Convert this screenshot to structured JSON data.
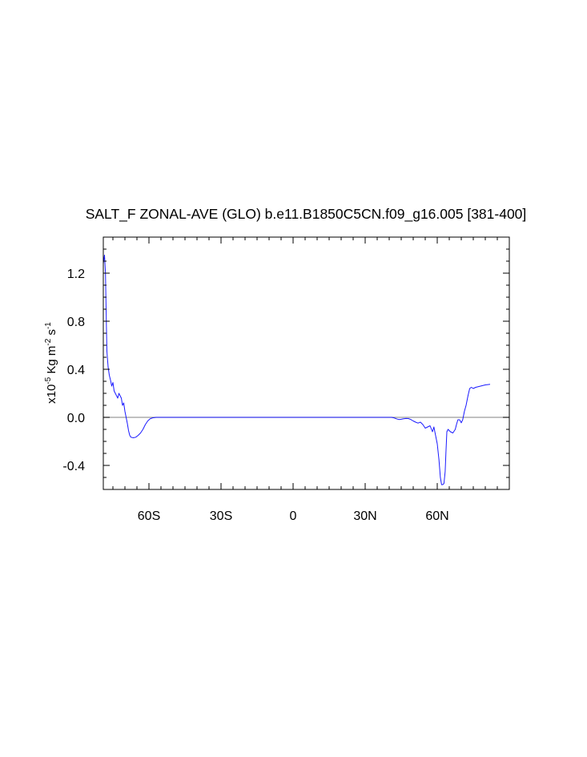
{
  "chart_data": {
    "type": "line",
    "title": "SALT_F ZONAL-AVE (GLO) b.e11.B1850C5CN.f09_g16.005 [381-400]",
    "ylabel": {
      "prefix": "x10",
      "exp1": "-5",
      "mid": " Kg m",
      "exp2": "-2",
      "mid2": " s",
      "exp3": "-1"
    },
    "xlim": [
      -79,
      90
    ],
    "ylim": [
      -0.6,
      1.5
    ],
    "xticks": [
      {
        "value": -60,
        "label": "60S"
      },
      {
        "value": -30,
        "label": "30S"
      },
      {
        "value": 0,
        "label": "0"
      },
      {
        "value": 30,
        "label": "30N"
      },
      {
        "value": 60,
        "label": "60N"
      }
    ],
    "yticks": [
      {
        "value": -0.4,
        "label": "-0.4"
      },
      {
        "value": 0.0,
        "label": "0.0"
      },
      {
        "value": 0.4,
        "label": "0.4"
      },
      {
        "value": 0.8,
        "label": "0.8"
      },
      {
        "value": 1.2,
        "label": "1.2"
      }
    ],
    "reference_line": {
      "y": 0.0,
      "color": "#9a9a9a"
    },
    "series": [
      {
        "color": "#1a1aff",
        "points": [
          [
            -79,
            1.28
          ],
          [
            -78.5,
            1.35
          ],
          [
            -78.1,
            1.2
          ],
          [
            -77.8,
            0.85
          ],
          [
            -77.5,
            0.55
          ],
          [
            -77,
            0.42
          ],
          [
            -76.5,
            0.35
          ],
          [
            -76,
            0.31
          ],
          [
            -75.5,
            0.26
          ],
          [
            -75,
            0.29
          ],
          [
            -74.5,
            0.22
          ],
          [
            -74,
            0.2
          ],
          [
            -73.5,
            0.18
          ],
          [
            -73,
            0.16
          ],
          [
            -72.5,
            0.2
          ],
          [
            -72,
            0.18
          ],
          [
            -71.5,
            0.16
          ],
          [
            -71,
            0.1
          ],
          [
            -70.5,
            0.12
          ],
          [
            -70,
            0.05
          ],
          [
            -69.5,
            0.0
          ],
          [
            -69,
            -0.05
          ],
          [
            -68.5,
            -0.11
          ],
          [
            -68,
            -0.15
          ],
          [
            -67.5,
            -0.165
          ],
          [
            -66.5,
            -0.17
          ],
          [
            -65.5,
            -0.165
          ],
          [
            -64.5,
            -0.15
          ],
          [
            -63.5,
            -0.13
          ],
          [
            -62.5,
            -0.1
          ],
          [
            -61.5,
            -0.06
          ],
          [
            -60.5,
            -0.03
          ],
          [
            -59.5,
            -0.012
          ],
          [
            -58.5,
            -0.004
          ],
          [
            -57,
            0.0
          ],
          [
            -50,
            0.0
          ],
          [
            -30,
            0.0
          ],
          [
            0,
            0.0
          ],
          [
            30,
            0.0
          ],
          [
            41,
            0.0
          ],
          [
            42,
            -0.004
          ],
          [
            43,
            -0.012
          ],
          [
            44,
            -0.018
          ],
          [
            45,
            -0.016
          ],
          [
            46,
            -0.012
          ],
          [
            47,
            -0.009
          ],
          [
            48,
            -0.01
          ],
          [
            49,
            -0.018
          ],
          [
            50,
            -0.03
          ],
          [
            51,
            -0.04
          ],
          [
            52,
            -0.048
          ],
          [
            53,
            -0.04
          ],
          [
            54,
            -0.06
          ],
          [
            55,
            -0.09
          ],
          [
            56,
            -0.08
          ],
          [
            57,
            -0.07
          ],
          [
            58,
            -0.12
          ],
          [
            58.6,
            -0.08
          ],
          [
            59,
            -0.12
          ],
          [
            60,
            -0.22
          ],
          [
            60.7,
            -0.35
          ],
          [
            61.3,
            -0.5
          ],
          [
            61.8,
            -0.56
          ],
          [
            62.3,
            -0.56
          ],
          [
            62.8,
            -0.55
          ],
          [
            63.3,
            -0.45
          ],
          [
            63.6,
            -0.3
          ],
          [
            64,
            -0.12
          ],
          [
            64.5,
            -0.1
          ],
          [
            65.5,
            -0.12
          ],
          [
            66.5,
            -0.13
          ],
          [
            67.5,
            -0.1
          ],
          [
            68,
            -0.06
          ],
          [
            68.6,
            -0.02
          ],
          [
            69.3,
            -0.02
          ],
          [
            70,
            -0.045
          ],
          [
            70.6,
            -0.02
          ],
          [
            71.3,
            0.05
          ],
          [
            72,
            0.1
          ],
          [
            72.8,
            0.18
          ],
          [
            73.5,
            0.24
          ],
          [
            74.2,
            0.25
          ],
          [
            75,
            0.24
          ],
          [
            76,
            0.25
          ],
          [
            78,
            0.26
          ],
          [
            80,
            0.27
          ],
          [
            82,
            0.275
          ]
        ]
      }
    ]
  }
}
